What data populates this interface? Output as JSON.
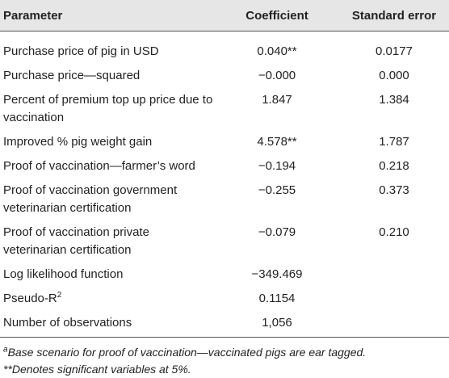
{
  "table": {
    "header": [
      "Parameter",
      "Coefficient",
      "Standard error"
    ],
    "rows": [
      {
        "parameter": "Purchase price of pig in USD",
        "coefficient": "0.040**",
        "standard_error": "0.0177"
      },
      {
        "parameter": "Purchase price—squared",
        "coefficient": "−0.000",
        "standard_error": "0.000"
      },
      {
        "parameter": "Percent of premium top up price due to vaccination",
        "coefficient": "1.847",
        "standard_error": "1.384"
      },
      {
        "parameter": "Improved % pig weight gain",
        "coefficient": "4.578**",
        "standard_error": "1.787"
      },
      {
        "parameter": "Proof of vaccination—farmer’s word",
        "coefficient": "−0.194",
        "standard_error": "0.218"
      },
      {
        "parameter": "Proof of vaccination government veterinarian certification",
        "coefficient": "−0.255",
        "standard_error": "0.373"
      },
      {
        "parameter": "Proof of vaccination private veterinarian certification",
        "coefficient": "−0.079",
        "standard_error": "0.210"
      },
      {
        "parameter": "Log likelihood function",
        "coefficient": "−349.469"
      },
      {
        "parameter": "Pseudo-R",
        "parameter_sup": "2",
        "coefficient": "0.1154"
      },
      {
        "parameter": "Number of observations",
        "coefficient": "1,056"
      }
    ]
  },
  "footnotes": [
    {
      "marker": "a",
      "text": "Base scenario for proof of vaccination—vaccinated pigs are ear tagged."
    },
    {
      "text": "**Denotes significant variables at 5%."
    }
  ]
}
